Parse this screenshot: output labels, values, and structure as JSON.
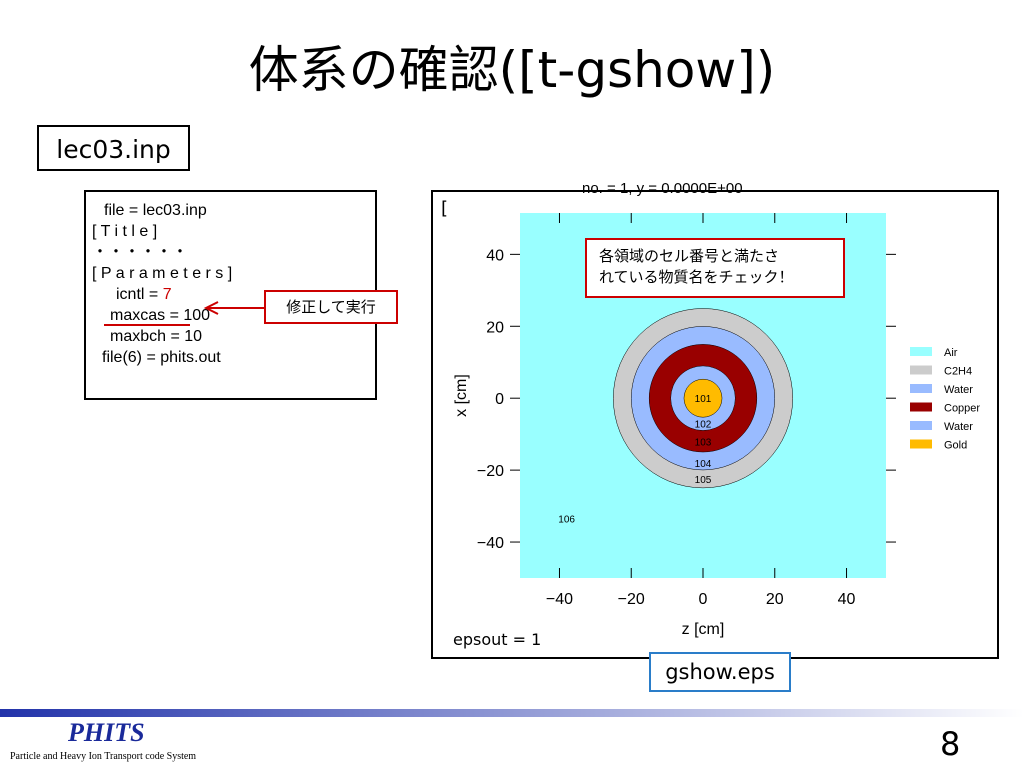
{
  "slide": {
    "title": "体系の確認([t-gshow])",
    "file_label": "lec03.inp",
    "code_lines": [
      "file = lec03.inp",
      "[ T i t l e ]",
      "・・・・・・",
      "[ P a r a m e t e r s ]",
      "icntl = ",
      "maxcas = 100",
      "maxbch = 10",
      "file(6) = phits.out"
    ],
    "icntl_value": "7",
    "callout": "修正して実行",
    "behind_text": [
      "[",
      "epsout = 1"
    ],
    "output_label": "gshow.eps",
    "page_number": "8",
    "logo": "PHITS",
    "logo_subtitle": "Particle and Heavy Ion Transport code System"
  },
  "plot": {
    "header": "no. =  1,    y =    0.0000E+00",
    "annotation": [
      "各領域のセル番号と満たさ",
      "れている物質名をチェック！"
    ],
    "xlabel": "z [cm]",
    "ylabel": "x [cm]",
    "xlim": [
      -51,
      51
    ],
    "ylim": [
      -50,
      51.5
    ],
    "xticks": [
      {
        "value": -40,
        "label": "−40"
      },
      {
        "value": -20,
        "label": "−20"
      },
      0,
      20,
      40
    ],
    "yticks": [
      {
        "value": -40,
        "label": "−40"
      },
      {
        "value": -20,
        "label": "−20"
      },
      0,
      20,
      40
    ],
    "background": "#99ffff",
    "rings": [
      {
        "radius": 25,
        "color": "#cccccc",
        "cell": "105",
        "label_y": -22.5
      },
      {
        "radius": 20,
        "color": "#99bbff",
        "cell": "104",
        "label_y": -18
      },
      {
        "radius": 15,
        "color": "#990000",
        "cell": "103",
        "label_y": -12
      },
      {
        "radius": 9,
        "color": "#99bbff",
        "cell": "102",
        "label_y": -7
      },
      {
        "radius": 5.3,
        "color": "#ffbb00",
        "cell": "101",
        "label_y": 0
      }
    ],
    "outer_cell": "106",
    "legend": [
      {
        "name": "Air",
        "color": "#99ffff"
      },
      {
        "name": "C2H4",
        "color": "#cccccc"
      },
      {
        "name": "Water",
        "color": "#99bbff"
      },
      {
        "name": "Copper",
        "color": "#990000"
      },
      {
        "name": "Water",
        "color": "#99bbff"
      },
      {
        "name": "Gold",
        "color": "#ffbb00"
      }
    ]
  }
}
